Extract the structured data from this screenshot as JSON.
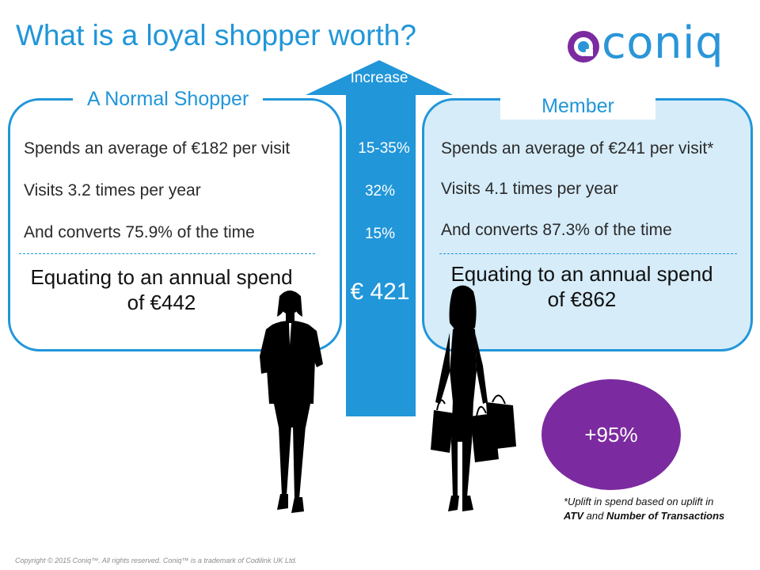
{
  "title": "What is a loyal shopper worth?",
  "logo": {
    "text": "coniq",
    "colors": {
      "mark_purple": "#7b2b9f",
      "mark_blue": "#2a96d8"
    }
  },
  "normal_shopper": {
    "heading": "A Normal Shopper",
    "lines": [
      "Spends an average of €182  per visit",
      "Visits 3.2  times per year",
      "And converts 75.9% of the time"
    ],
    "summary_line1": "Equating to an annual spend",
    "summary_line2": "of €442"
  },
  "member": {
    "heading": "Member",
    "lines": [
      "Spends an average of €241 per visit*",
      "Visits 4.1 times per year",
      "And converts 87.3% of the time"
    ],
    "summary_line1": "Equating to an annual spend",
    "summary_line2": "of €862"
  },
  "increase": {
    "label": "Increase",
    "values": [
      "15-35%",
      "32%",
      "15%"
    ],
    "total": "€ 421"
  },
  "uplift": {
    "value": "+95%"
  },
  "footnote": {
    "part1": "*Uplift in spend based on uplift in",
    "atv": "ATV",
    "and": "and",
    "transactions": "Number of Transactions"
  },
  "copyright": "Copyright © 2015 Coniq™. All rights reserved. Coniq™ is a trademark of Codilink UK Ltd.",
  "colors": {
    "accent": "#2196d9",
    "member_bg": "#d6ecf9",
    "uplift_circle": "#7b2b9f"
  }
}
